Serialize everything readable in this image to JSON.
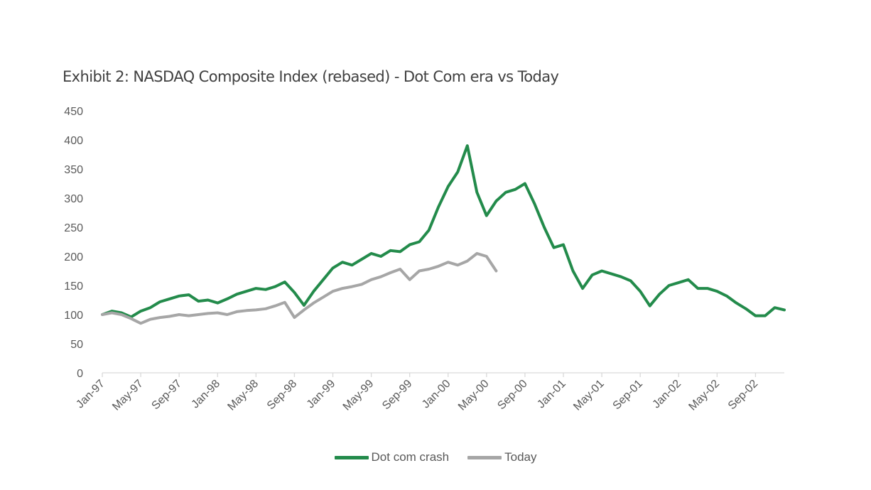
{
  "chart_data": {
    "type": "line",
    "title": "Exhibit 2: NASDAQ Composite Index (rebased) - Dot Com era vs Today",
    "xlabel": "",
    "ylabel": "",
    "ylim": [
      0,
      450
    ],
    "y_ticks": [
      "0",
      "50",
      "100",
      "150",
      "200",
      "250",
      "300",
      "350",
      "400",
      "450"
    ],
    "x_ticks": [
      "Jan-97",
      "May-97",
      "Sep-97",
      "Jan-98",
      "May-98",
      "Sep-98",
      "Jan-99",
      "May-99",
      "Sep-99",
      "Jan-00",
      "May-00",
      "Sep-00",
      "Jan-01",
      "May-01",
      "Sep-01",
      "Jan-02",
      "May-02",
      "Sep-02"
    ],
    "x_range": [
      "1997-01",
      "2002-12"
    ],
    "grid": false,
    "legend_position": "bottom",
    "series": [
      {
        "name": "Dot com crash",
        "color": "#238B4B",
        "x": [
          "1997-01",
          "1997-02",
          "1997-03",
          "1997-04",
          "1997-05",
          "1997-06",
          "1997-07",
          "1997-08",
          "1997-09",
          "1997-10",
          "1997-11",
          "1997-12",
          "1998-01",
          "1998-02",
          "1998-03",
          "1998-04",
          "1998-05",
          "1998-06",
          "1998-07",
          "1998-08",
          "1998-09",
          "1998-10",
          "1998-11",
          "1998-12",
          "1999-01",
          "1999-02",
          "1999-03",
          "1999-04",
          "1999-05",
          "1999-06",
          "1999-07",
          "1999-08",
          "1999-09",
          "1999-10",
          "1999-11",
          "1999-12",
          "2000-01",
          "2000-02",
          "2000-03",
          "2000-04",
          "2000-05",
          "2000-06",
          "2000-07",
          "2000-08",
          "2000-09",
          "2000-10",
          "2000-11",
          "2000-12",
          "2001-01",
          "2001-02",
          "2001-03",
          "2001-04",
          "2001-05",
          "2001-06",
          "2001-07",
          "2001-08",
          "2001-09",
          "2001-10",
          "2001-11",
          "2001-12",
          "2002-01",
          "2002-02",
          "2002-03",
          "2002-04",
          "2002-05",
          "2002-06",
          "2002-07",
          "2002-08",
          "2002-09",
          "2002-10",
          "2002-11",
          "2002-12"
        ],
        "values": [
          100,
          106,
          103,
          96,
          106,
          112,
          122,
          127,
          132,
          134,
          123,
          125,
          120,
          127,
          135,
          140,
          145,
          143,
          148,
          156,
          138,
          116,
          140,
          160,
          180,
          190,
          185,
          195,
          205,
          200,
          210,
          208,
          220,
          225,
          245,
          285,
          320,
          345,
          390,
          310,
          270,
          295,
          310,
          315,
          325,
          290,
          250,
          215,
          220,
          175,
          145,
          168,
          175,
          170,
          165,
          158,
          140,
          115,
          135,
          150,
          155,
          160,
          145,
          145,
          140,
          132,
          120,
          110,
          98,
          98,
          112,
          108
        ]
      },
      {
        "name": "Today",
        "color": "#A6A6A6",
        "x": [
          "1997-01",
          "1997-02",
          "1997-03",
          "1997-04",
          "1997-05",
          "1997-06",
          "1997-07",
          "1997-08",
          "1997-09",
          "1997-10",
          "1997-11",
          "1997-12",
          "1998-01",
          "1998-02",
          "1998-03",
          "1998-04",
          "1998-05",
          "1998-06",
          "1998-07",
          "1998-08",
          "1998-09",
          "1998-10",
          "1998-11",
          "1998-12",
          "1999-01",
          "1999-02",
          "1999-03",
          "1999-04",
          "1999-05",
          "1999-06",
          "1999-07",
          "1999-08",
          "1999-09",
          "1999-10",
          "1999-11",
          "1999-12",
          "2000-01",
          "2000-02",
          "2000-03",
          "2000-04",
          "2000-05",
          "2000-06"
        ],
        "values": [
          100,
          103,
          100,
          93,
          85,
          92,
          95,
          97,
          100,
          98,
          100,
          102,
          103,
          100,
          105,
          107,
          108,
          110,
          115,
          121,
          95,
          108,
          120,
          130,
          140,
          145,
          148,
          152,
          160,
          165,
          172,
          178,
          160,
          175,
          178,
          183,
          190,
          185,
          192,
          205,
          200,
          175
        ]
      }
    ]
  }
}
